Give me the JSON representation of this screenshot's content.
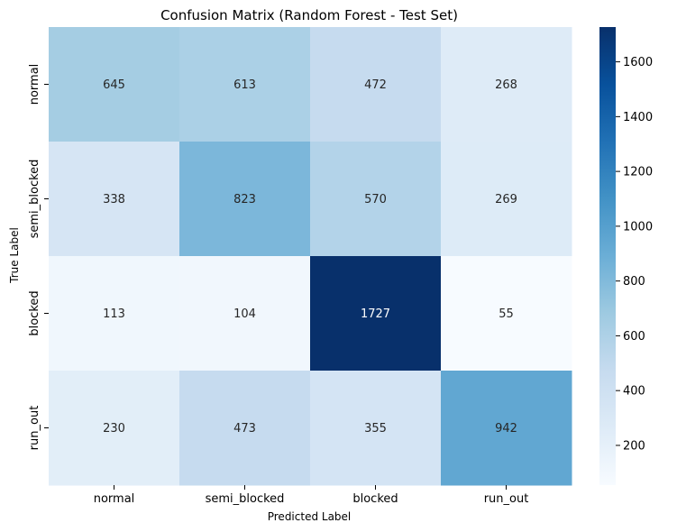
{
  "chart_data": {
    "type": "heatmap",
    "title": "Confusion Matrix (Random Forest - Test Set)",
    "xlabel": "Predicted Label",
    "ylabel": "True Label",
    "x_categories": [
      "normal",
      "semi_blocked",
      "blocked",
      "run_out"
    ],
    "y_categories": [
      "normal",
      "semi_blocked",
      "blocked",
      "run_out"
    ],
    "values": [
      [
        645,
        613,
        472,
        268
      ],
      [
        338,
        823,
        570,
        269
      ],
      [
        113,
        104,
        1727,
        55
      ],
      [
        230,
        473,
        355,
        942
      ]
    ],
    "colormap": "Blues",
    "vmin": 55,
    "vmax": 1727,
    "colorbar_ticks": [
      "200",
      "400",
      "600",
      "800",
      "1000",
      "1200",
      "1400",
      "1600"
    ],
    "colors": {
      "light_text": "#ffffff",
      "dark_text": "#262626"
    }
  }
}
